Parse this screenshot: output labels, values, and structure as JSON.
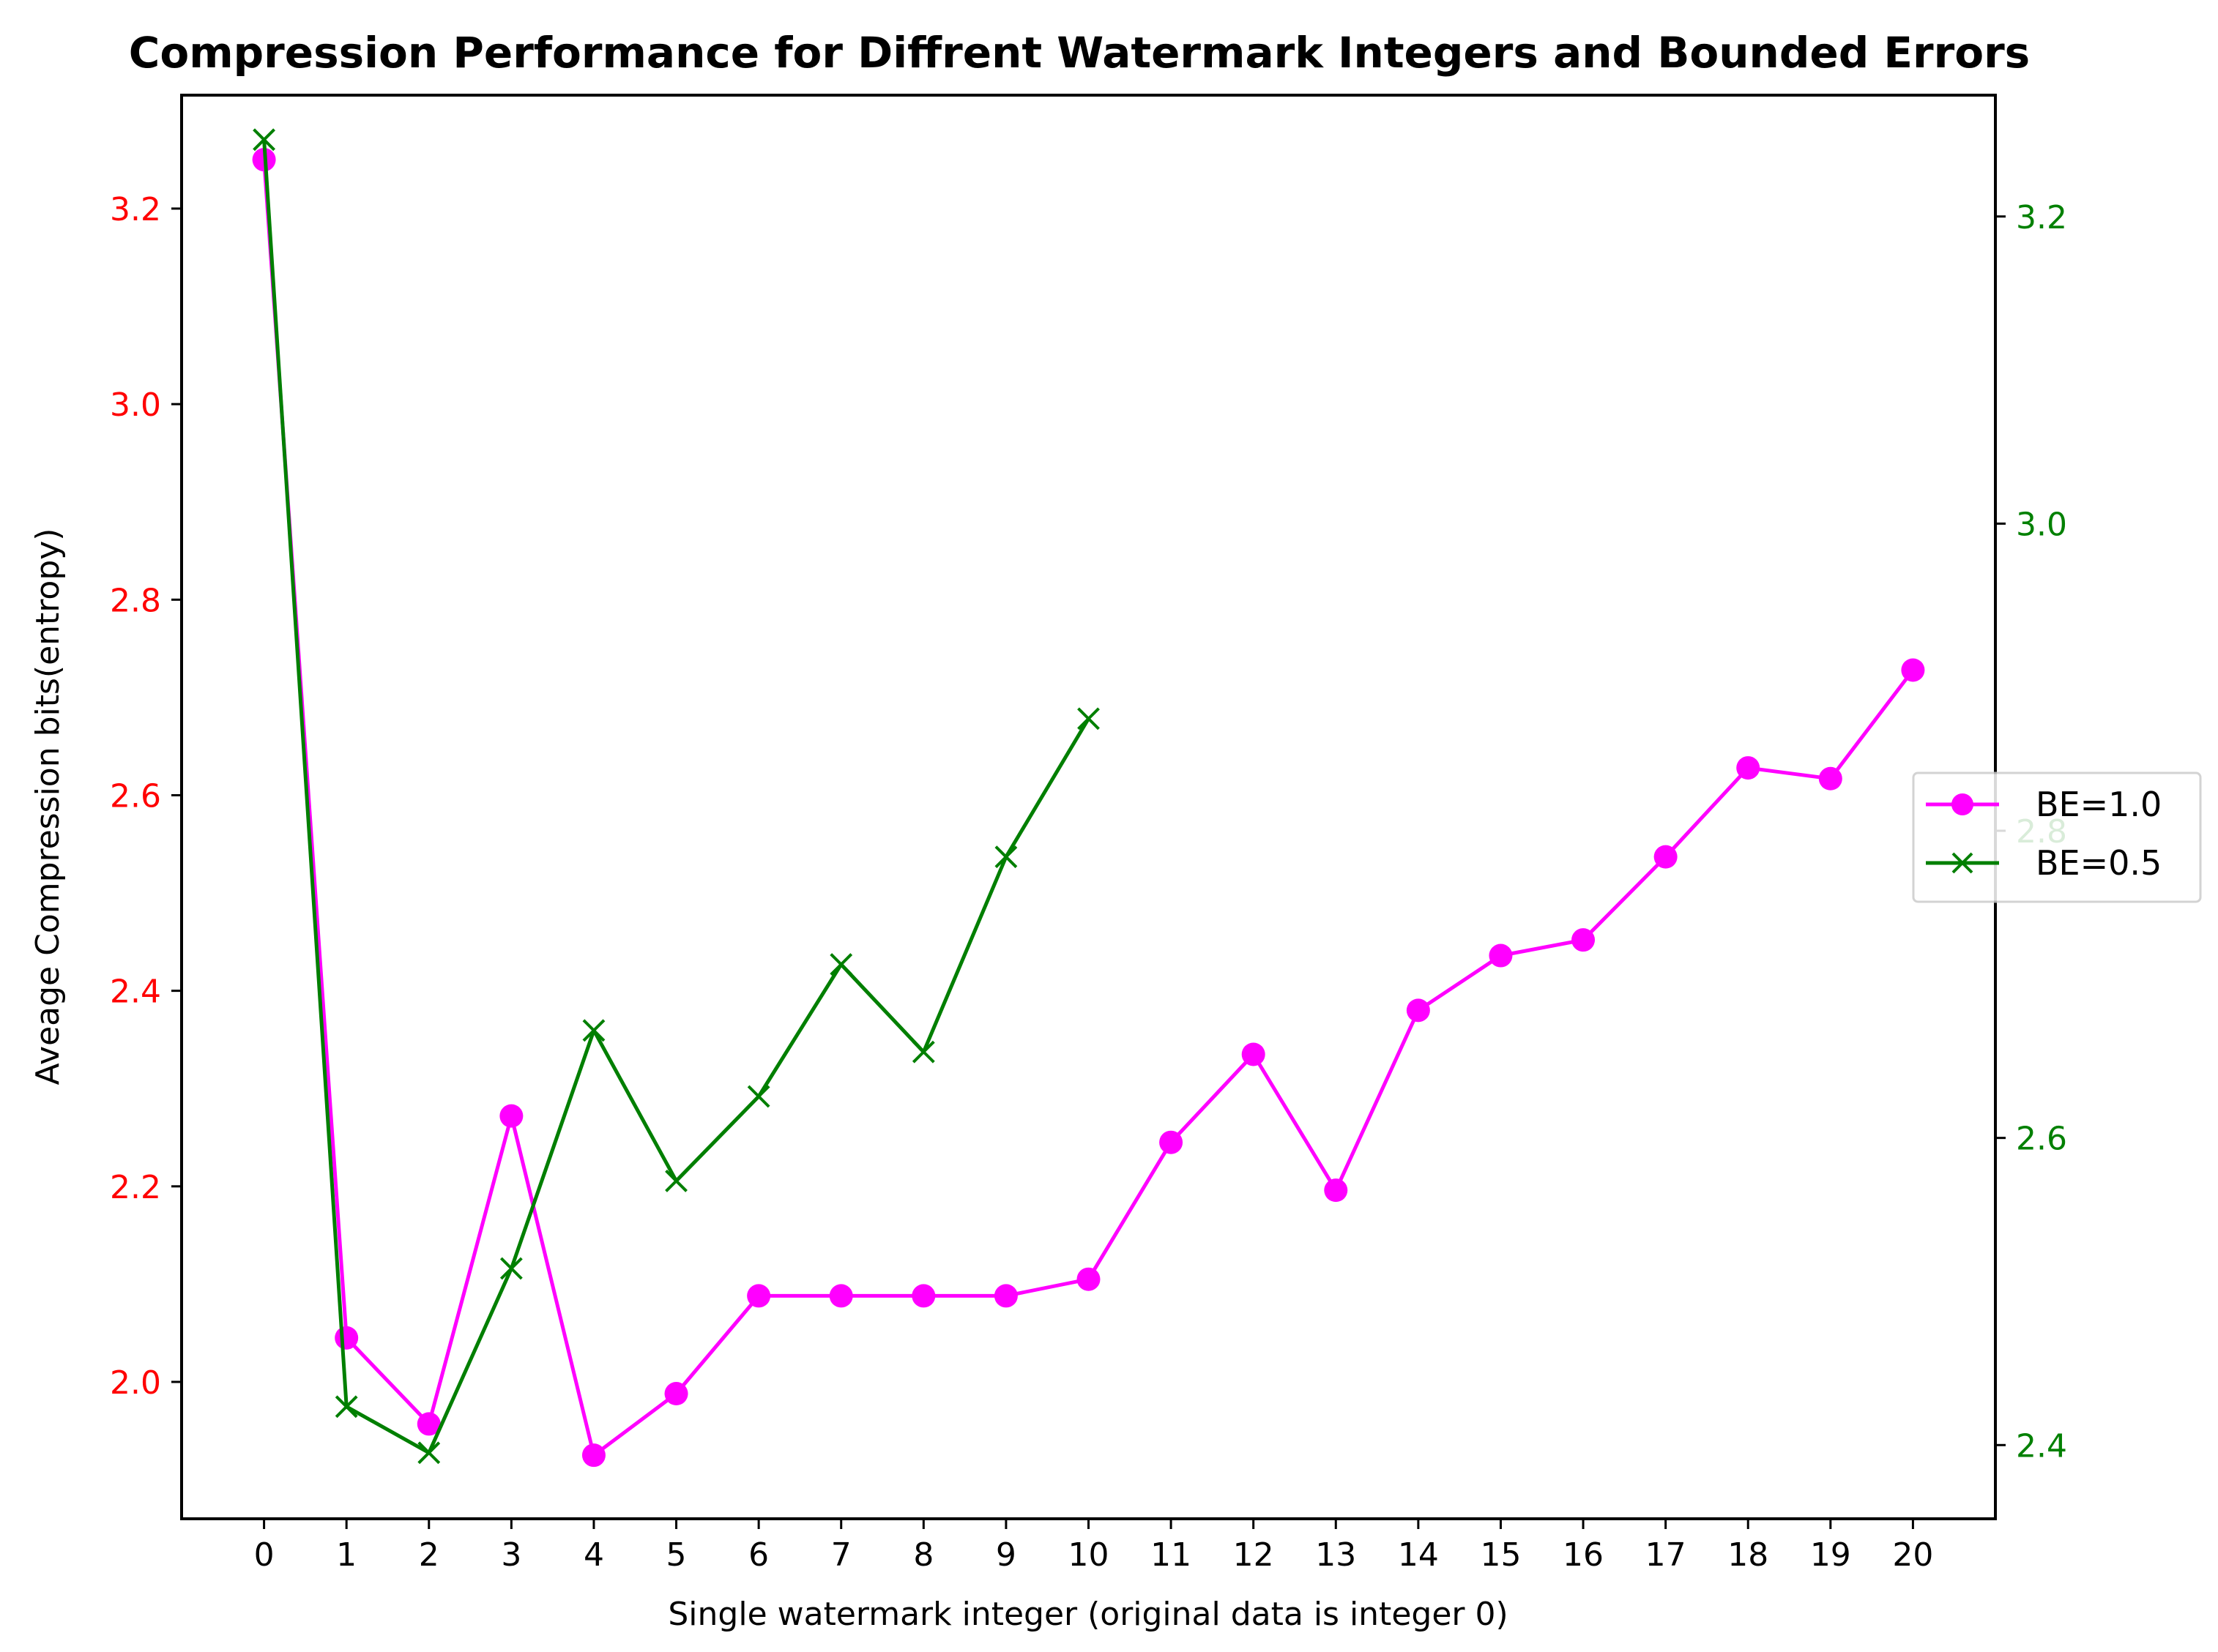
{
  "chart_data": {
    "type": "line",
    "title": "Compression Performance for Diffrent Watermark Integers and Bounded Errors",
    "xlabel": "Single watermark integer (original data is integer 0)",
    "ylabel": "Aveage Compression bits(entropy)",
    "ylabel_right": "",
    "x_ticks": [
      0,
      1,
      2,
      3,
      4,
      5,
      6,
      7,
      8,
      9,
      10,
      11,
      12,
      13,
      14,
      15,
      16,
      17,
      18,
      19,
      20
    ],
    "xlim": [
      -1,
      21
    ],
    "y_left": {
      "lim": [
        1.86,
        3.316
      ],
      "ticks": [
        2.0,
        2.2,
        2.4,
        2.6,
        2.8,
        3.0,
        3.2
      ],
      "tick_labels": [
        "2.0",
        "2.2",
        "2.4",
        "2.6",
        "2.8",
        "3.0",
        "3.2"
      ],
      "tick_color": "#ff0000"
    },
    "y_right": {
      "lim": [
        2.352,
        3.279
      ],
      "ticks": [
        2.4,
        2.6,
        2.8,
        3.0,
        3.2
      ],
      "tick_labels": [
        "2.4",
        "2.6",
        "2.8",
        "3.0",
        "3.2"
      ],
      "tick_color": "#008000"
    },
    "grid": false,
    "legend_position": "right",
    "series": [
      {
        "name": "BE=1.0",
        "axis": "left",
        "color": "#ff00ff",
        "marker": "circle",
        "x": [
          0,
          1,
          2,
          3,
          4,
          5,
          6,
          7,
          8,
          9,
          10,
          11,
          12,
          13,
          14,
          15,
          16,
          17,
          18,
          19,
          20
        ],
        "y": [
          3.25,
          2.045,
          1.957,
          2.272,
          1.925,
          1.988,
          2.088,
          2.088,
          2.088,
          2.088,
          2.105,
          2.245,
          2.335,
          2.196,
          2.38,
          2.436,
          2.452,
          2.537,
          2.628,
          2.617,
          2.728
        ]
      },
      {
        "name": "BE=0.5",
        "axis": "right",
        "color": "#007f00",
        "marker": "x",
        "x": [
          0,
          1,
          2,
          3,
          4,
          5,
          6,
          7,
          8,
          9,
          10
        ],
        "y": [
          3.25,
          2.425,
          2.395,
          2.515,
          2.67,
          2.572,
          2.627,
          2.713,
          2.656,
          2.783,
          2.873
        ]
      }
    ]
  }
}
